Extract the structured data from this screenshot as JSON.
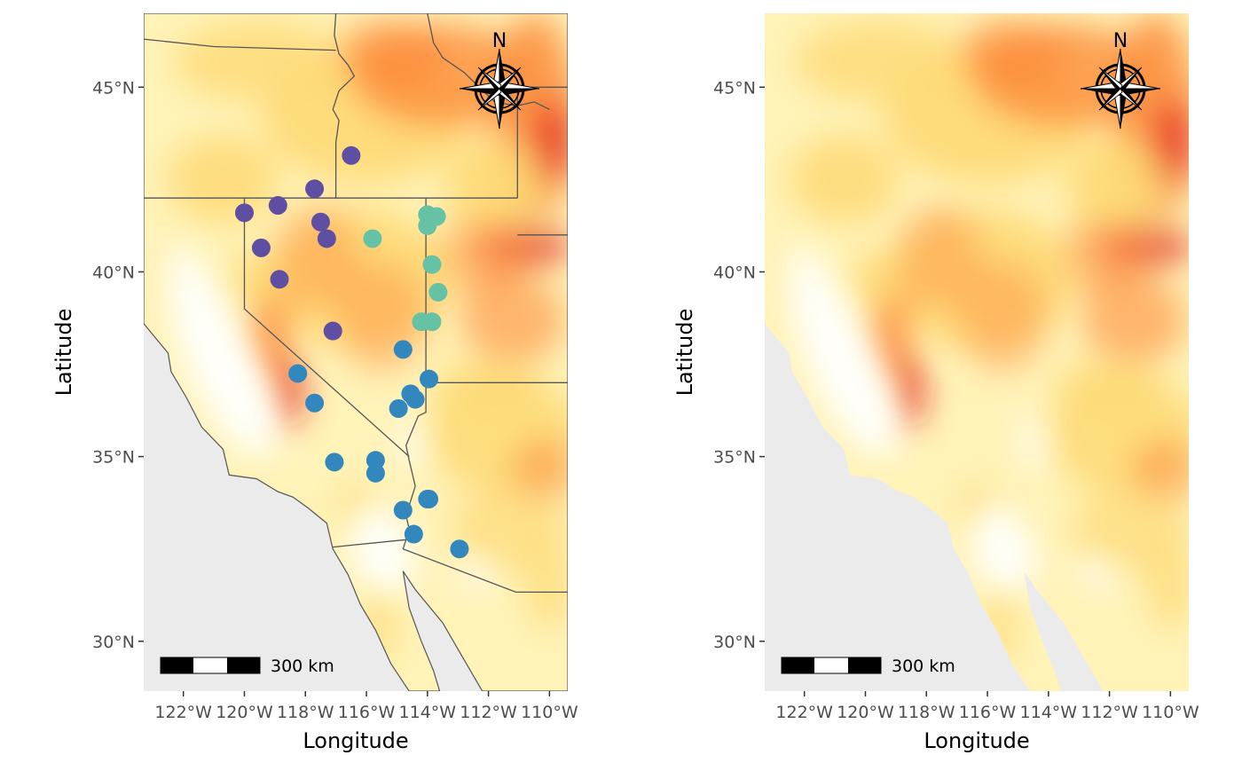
{
  "map": {
    "x_label": "Longitude",
    "y_label": "Latitude",
    "x_ticks": [
      {
        "value": -122,
        "label": "122°W"
      },
      {
        "value": -120,
        "label": "120°W"
      },
      {
        "value": -118,
        "label": "118°W"
      },
      {
        "value": -116,
        "label": "116°W"
      },
      {
        "value": -114,
        "label": "114°W"
      },
      {
        "value": -112,
        "label": "112°W"
      },
      {
        "value": -110,
        "label": "110°W"
      }
    ],
    "y_ticks": [
      {
        "value": 30,
        "label": "30°N"
      },
      {
        "value": 35,
        "label": "35°N"
      },
      {
        "value": 40,
        "label": "40°N"
      },
      {
        "value": 45,
        "label": "45°N"
      }
    ],
    "lon_range": [
      -123.3,
      -109.4
    ],
    "lat_range": [
      28.65,
      47.0
    ],
    "scale_bar_label": "300 km",
    "north_label": "N",
    "colors": {
      "ocean": "#ebebeb",
      "raster_low": "#ffffe0",
      "raster_mid": "#fed976",
      "raster_high": "#fd8d3c",
      "raster_peak": "#e31a1c",
      "border": "#555555",
      "group_purple": "#5e4fa2",
      "group_teal": "#66c2a5",
      "group_blue": "#3288bd"
    }
  },
  "panels": [
    {
      "id": "left",
      "show_points": true,
      "show_borders": true
    },
    {
      "id": "right",
      "show_points": false,
      "show_borders": false
    }
  ],
  "points": [
    {
      "group": "purple",
      "lon": -116.5,
      "lat": 43.15
    },
    {
      "group": "purple",
      "lon": -117.7,
      "lat": 42.25
    },
    {
      "group": "purple",
      "lon": -118.9,
      "lat": 41.8
    },
    {
      "group": "purple",
      "lon": -120.0,
      "lat": 41.6
    },
    {
      "group": "purple",
      "lon": -117.5,
      "lat": 41.35
    },
    {
      "group": "purple",
      "lon": -117.3,
      "lat": 40.9
    },
    {
      "group": "purple",
      "lon": -119.45,
      "lat": 40.65
    },
    {
      "group": "purple",
      "lon": -118.85,
      "lat": 39.8
    },
    {
      "group": "purple",
      "lon": -117.1,
      "lat": 38.4
    },
    {
      "group": "teal",
      "lon": -115.8,
      "lat": 40.9
    },
    {
      "group": "teal",
      "lon": -114.0,
      "lat": 41.55
    },
    {
      "group": "teal",
      "lon": -113.7,
      "lat": 41.5
    },
    {
      "group": "teal",
      "lon": -114.0,
      "lat": 41.25
    },
    {
      "group": "teal",
      "lon": -113.85,
      "lat": 40.2
    },
    {
      "group": "teal",
      "lon": -113.65,
      "lat": 39.45
    },
    {
      "group": "teal",
      "lon": -114.2,
      "lat": 38.65
    },
    {
      "group": "teal",
      "lon": -113.85,
      "lat": 38.65
    },
    {
      "group": "blue",
      "lon": -114.8,
      "lat": 37.9
    },
    {
      "group": "blue",
      "lon": -118.25,
      "lat": 37.25
    },
    {
      "group": "blue",
      "lon": -113.95,
      "lat": 37.1
    },
    {
      "group": "blue",
      "lon": -114.55,
      "lat": 36.7
    },
    {
      "group": "blue",
      "lon": -114.4,
      "lat": 36.55
    },
    {
      "group": "blue",
      "lon": -114.95,
      "lat": 36.3
    },
    {
      "group": "blue",
      "lon": -117.7,
      "lat": 36.45
    },
    {
      "group": "blue",
      "lon": -117.05,
      "lat": 34.85
    },
    {
      "group": "blue",
      "lon": -115.7,
      "lat": 34.9
    },
    {
      "group": "blue",
      "lon": -115.7,
      "lat": 34.55
    },
    {
      "group": "blue",
      "lon": -114.8,
      "lat": 33.55
    },
    {
      "group": "blue",
      "lon": -114.0,
      "lat": 33.85
    },
    {
      "group": "blue",
      "lon": -113.95,
      "lat": 33.85
    },
    {
      "group": "blue",
      "lon": -114.45,
      "lat": 32.9
    },
    {
      "group": "blue",
      "lon": -112.95,
      "lat": 32.5
    }
  ]
}
